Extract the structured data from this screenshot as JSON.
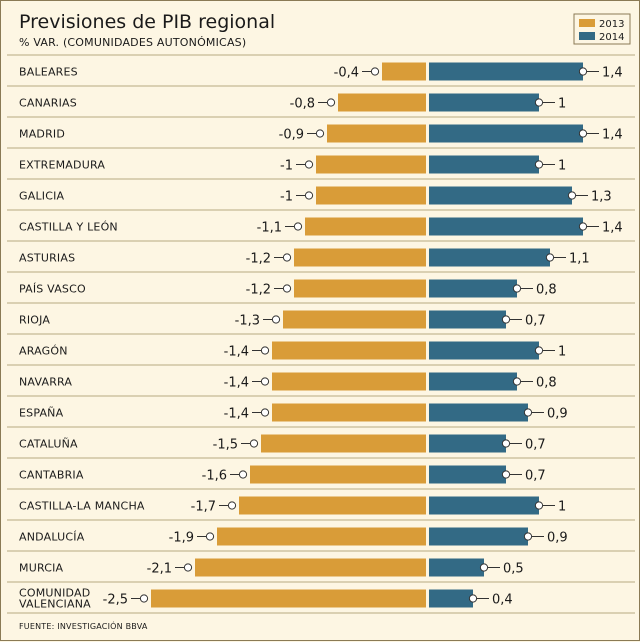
{
  "chart_data": {
    "type": "bar",
    "title": "Previsiones de PIB regional",
    "subtitle": "% VAR. (COMUNIDADES AUTONÓMICAS)",
    "source": "FUENTE: INVESTIGACIÓN BBVA",
    "legend_position": "top-right",
    "colors": {
      "2013": "#d99c38",
      "2014": "#336a85"
    },
    "series": [
      {
        "name": "2013",
        "values": [
          -0.4,
          -0.8,
          -0.9,
          -1,
          -1,
          -1.1,
          -1.2,
          -1.2,
          -1.3,
          -1.4,
          -1.4,
          -1.4,
          -1.5,
          -1.6,
          -1.7,
          -1.9,
          -2.1,
          -2.5
        ]
      },
      {
        "name": "2014",
        "values": [
          1.4,
          1,
          1.4,
          1,
          1.3,
          1.4,
          1.1,
          0.8,
          0.7,
          1,
          0.8,
          0.9,
          0.7,
          0.7,
          1,
          0.9,
          0.5,
          0.4
        ]
      }
    ],
    "value_labels": {
      "2013": [
        "-0,4",
        "-0,8",
        "-0,9",
        "-1",
        "-1",
        "-1,1",
        "-1,2",
        "-1,2",
        "-1,3",
        "-1,4",
        "-1,4",
        "-1,4",
        "-1,5",
        "-1,6",
        "-1,7",
        "-1,9",
        "-2,1",
        "-2,5"
      ],
      "2014": [
        "1,4",
        "1",
        "1,4",
        "1",
        "1,3",
        "1,4",
        "1,1",
        "0,8",
        "0,7",
        "1",
        "0,8",
        "0,9",
        "0,7",
        "0,7",
        "1",
        "0,9",
        "0,5",
        "0,4"
      ]
    },
    "categories": [
      "BALEARES",
      "CANARIAS",
      "MADRID",
      "EXTREMADURA",
      "GALICIA",
      "CASTILLA Y LEÓN",
      "ASTURIAS",
      "PAÍS VASCO",
      "RIOJA",
      "ARAGÓN",
      "NAVARRA",
      "ESPAÑA",
      "CATALUÑA",
      "CANTABRIA",
      "CASTILLA-LA MANCHA",
      "ANDALUCÍA",
      "MURCIA",
      "COMUNIDAD VALENCIANA"
    ],
    "category_lines": [
      [
        "BALEARES"
      ],
      [
        "CANARIAS"
      ],
      [
        "MADRID"
      ],
      [
        "EXTREMADURA"
      ],
      [
        "GALICIA"
      ],
      [
        "CASTILLA Y LEÓN"
      ],
      [
        "ASTURIAS"
      ],
      [
        "PAÍS VASCO"
      ],
      [
        "RIOJA"
      ],
      [
        "ARAGÓN"
      ],
      [
        "NAVARRA"
      ],
      [
        "ESPAÑA"
      ],
      [
        "CATALUÑA"
      ],
      [
        "CANTABRIA"
      ],
      [
        "CASTILLA-LA MANCHA"
      ],
      [
        "ANDALUCÍA"
      ],
      [
        "MURCIA"
      ],
      [
        "COMUNIDAD",
        "VALENCIANA"
      ]
    ]
  }
}
